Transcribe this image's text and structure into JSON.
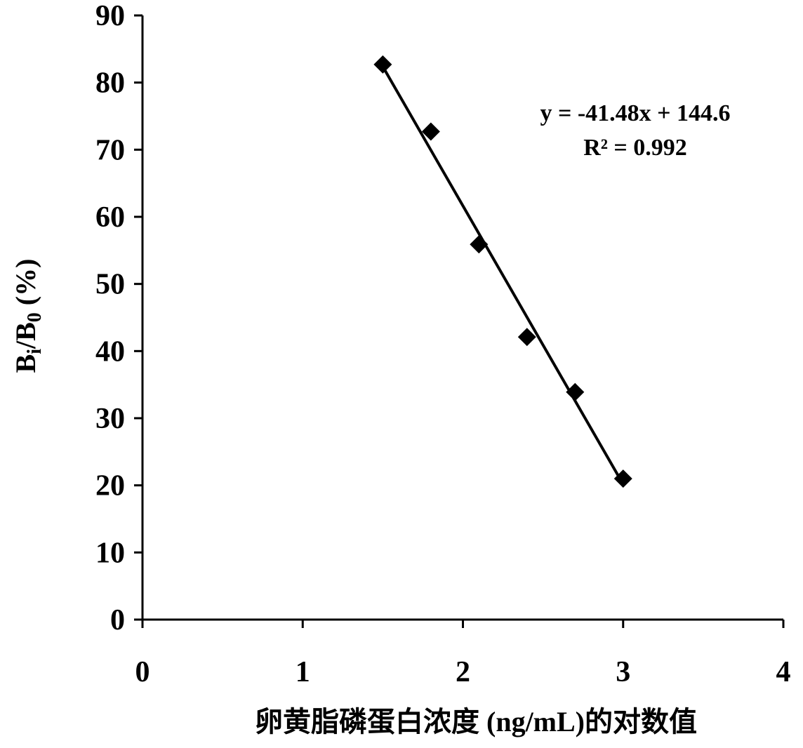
{
  "chart_data": {
    "type": "scatter",
    "series": [
      {
        "x": [
          1.5,
          1.8,
          2.1,
          2.4,
          2.7,
          3.0
        ],
        "y": [
          82.7,
          72.7,
          55.9,
          42.1,
          33.9,
          21.0
        ],
        "marker": "diamond",
        "color": "#000000"
      }
    ],
    "trendline": {
      "type": "linear",
      "slope": -41.48,
      "intercept": 144.6,
      "x_range": [
        1.5,
        3.0
      ],
      "equation": "y = -41.48x + 144.6",
      "r_squared": "R² = 0.992"
    },
    "xlabel": "卵黄脂磷蛋白浓度 (ng/mL)的对数值",
    "ylabel": {
      "b1": "B",
      "sub1": "i",
      "mid": "/B",
      "sub2": "0",
      "suffix": " (%)"
    },
    "xlim": [
      0,
      4
    ],
    "ylim": [
      0,
      90
    ],
    "x_ticks": [
      "0",
      "1",
      "2",
      "3",
      "4"
    ],
    "y_ticks": [
      "0",
      "10",
      "20",
      "30",
      "40",
      "50",
      "60",
      "70",
      "80",
      "90"
    ],
    "grid": false,
    "legend": "none"
  }
}
